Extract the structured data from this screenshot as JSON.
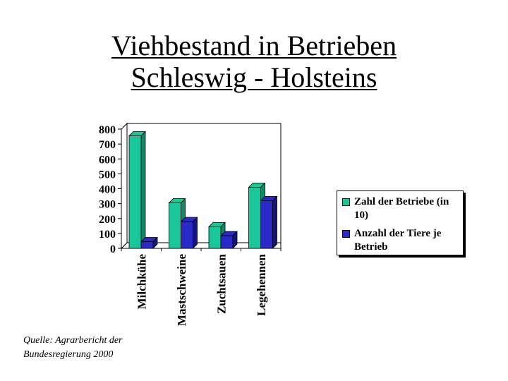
{
  "title": {
    "line1": "Viehbestand in Betrieben",
    "line2": "Schleswig - Holsteins"
  },
  "source": "Quelle: Agrarbericht der Bundesregierung 2000",
  "colors": {
    "series1": "#19c79a",
    "series1_side": "#0d8a68",
    "series2": "#2929c8",
    "series2_side": "#15157e",
    "axis": "#000000"
  },
  "chart_data": {
    "type": "bar",
    "title": "Viehbestand in Betrieben Schleswig - Holsteins",
    "categories": [
      "Milchkühe",
      "Mastschweine",
      "Zuchtsauen",
      "Legehennen"
    ],
    "series": [
      {
        "name": "Zahl der Betriebe (in 10)",
        "values": [
          755,
          305,
          145,
          410
        ]
      },
      {
        "name": "Anzahl der Tiere je Betrieb",
        "values": [
          45,
          180,
          85,
          320
        ]
      }
    ],
    "y_ticks": [
      "0",
      "100",
      "200",
      "300",
      "400",
      "500",
      "600",
      "700",
      "800"
    ],
    "ylim": [
      0,
      800
    ],
    "xlabel": "",
    "ylabel": "",
    "grid": false,
    "legend_position": "right"
  }
}
